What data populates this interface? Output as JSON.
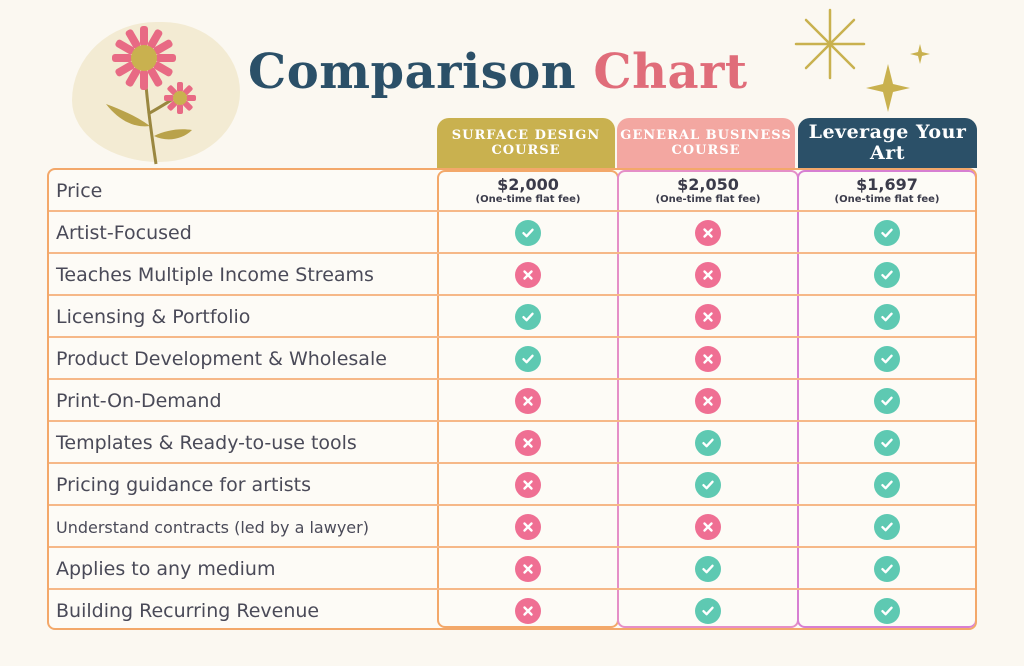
{
  "title": {
    "part1": "Comparison",
    "part2": "Chart"
  },
  "colors": {
    "navy": "#2b5068",
    "pink": "#e06d7a",
    "gold": "#c9b14f",
    "salmon": "#f3a7a1",
    "check": "#5ec9b2",
    "cross": "#ef6f93",
    "row_line": "#f6b888"
  },
  "columns": [
    {
      "label": "SURFACE DESIGN COURSE",
      "price": "$2,000",
      "price_note": "(One-time flat fee)"
    },
    {
      "label": "GENERAL BUSINESS COURSE",
      "price": "$2,050",
      "price_note": "(One-time flat fee)"
    },
    {
      "label": "Leverage Your Art",
      "price": "$1,697",
      "price_note": "(One-time flat fee)"
    }
  ],
  "price_label": "Price",
  "rows": [
    {
      "label": "Artist-Focused",
      "values": [
        true,
        false,
        true
      ]
    },
    {
      "label": "Teaches Multiple Income Streams",
      "values": [
        false,
        false,
        true
      ]
    },
    {
      "label": "Licensing & Portfolio",
      "values": [
        true,
        false,
        true
      ]
    },
    {
      "label": "Product Development & Wholesale",
      "values": [
        true,
        false,
        true
      ]
    },
    {
      "label": "Print-On-Demand",
      "values": [
        false,
        false,
        true
      ]
    },
    {
      "label": "Templates & Ready-to-use tools",
      "values": [
        false,
        true,
        true
      ]
    },
    {
      "label": "Pricing guidance for artists",
      "values": [
        false,
        true,
        true
      ]
    },
    {
      "label": "Understand contracts (led by a lawyer)",
      "values": [
        false,
        false,
        true
      ]
    },
    {
      "label": "Applies to any medium",
      "values": [
        false,
        true,
        true
      ]
    },
    {
      "label": "Building Recurring Revenue",
      "values": [
        false,
        true,
        true
      ]
    }
  ],
  "icons": {
    "yes": "check-circle-icon",
    "no": "x-circle-icon",
    "decor": [
      "flower-icon",
      "sparkle-icon"
    ]
  }
}
